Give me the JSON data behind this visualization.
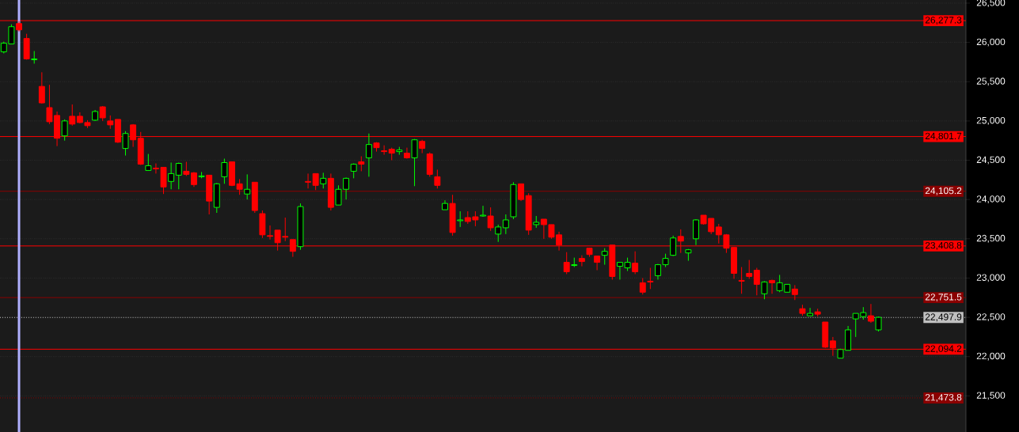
{
  "chart_data": {
    "type": "candlestick",
    "categories": [
      null,
      null,
      null,
      null,
      null,
      null,
      null,
      null,
      null,
      null,
      null,
      null,
      null,
      null,
      null,
      null,
      null,
      null,
      null,
      null,
      null,
      null,
      null,
      null,
      null,
      null,
      null,
      null,
      null,
      null,
      null,
      null,
      null,
      null,
      null,
      null,
      null,
      null,
      null,
      null,
      null,
      null,
      null,
      null,
      null,
      null,
      null,
      null,
      null,
      null,
      null,
      null,
      null,
      null,
      null,
      null,
      null,
      null,
      null,
      null,
      null,
      null,
      null,
      null,
      null,
      null,
      null,
      null,
      null,
      null,
      null,
      null,
      null,
      null,
      null,
      null,
      null,
      null,
      null,
      null,
      null,
      null,
      null,
      null,
      null,
      null,
      null,
      null,
      null,
      null,
      null,
      null,
      null,
      null,
      null,
      null,
      null,
      null,
      null,
      null,
      null,
      null,
      null,
      null,
      null,
      null,
      null,
      null,
      null,
      null,
      null,
      null,
      null,
      null,
      null,
      null,
      null,
      null,
      null,
      null,
      null,
      null,
      null,
      null,
      null,
      null,
      null
    ],
    "ohlc": [
      [
        25880,
        26010,
        25860,
        25990
      ],
      [
        25980,
        26230,
        25980,
        26200
      ],
      [
        26240,
        26270,
        26140,
        26160
      ],
      [
        26050,
        26110,
        25780,
        25790
      ],
      [
        25780,
        25890,
        25730,
        25790
      ],
      [
        25440,
        25620,
        25220,
        25230
      ],
      [
        25170,
        25460,
        24960,
        24990
      ],
      [
        25070,
        25120,
        24680,
        24780
      ],
      [
        24810,
        25020,
        24750,
        25000
      ],
      [
        25060,
        25210,
        24940,
        24960
      ],
      [
        25060,
        25110,
        24970,
        24980
      ],
      [
        24980,
        25010,
        24910,
        24940
      ],
      [
        25010,
        25140,
        25000,
        25120
      ],
      [
        25180,
        25190,
        25000,
        25040
      ],
      [
        25000,
        25070,
        24900,
        24950
      ],
      [
        25020,
        25020,
        24720,
        24730
      ],
      [
        24650,
        24870,
        24560,
        24840
      ],
      [
        24950,
        24960,
        24670,
        24760
      ],
      [
        24780,
        24860,
        24440,
        24450
      ],
      [
        24370,
        24580,
        24370,
        24430
      ],
      [
        24400,
        24460,
        24330,
        24390
      ],
      [
        24410,
        24410,
        24070,
        24160
      ],
      [
        24230,
        24470,
        24130,
        24330
      ],
      [
        24310,
        24470,
        24130,
        24460
      ],
      [
        24360,
        24480,
        24300,
        24320
      ],
      [
        24340,
        24350,
        24160,
        24190
      ],
      [
        24290,
        24350,
        24270,
        24300
      ],
      [
        24310,
        24310,
        23810,
        23980
      ],
      [
        23900,
        24210,
        23830,
        24200
      ],
      [
        24290,
        24520,
        24200,
        24470
      ],
      [
        24480,
        24480,
        24170,
        24180
      ],
      [
        24200,
        24260,
        24060,
        24130
      ],
      [
        24070,
        24320,
        24000,
        24130
      ],
      [
        24220,
        24220,
        23830,
        23860
      ],
      [
        23820,
        23860,
        23510,
        23550
      ],
      [
        23540,
        23670,
        23490,
        23530
      ],
      [
        23610,
        23610,
        23350,
        23450
      ],
      [
        23530,
        23770,
        23470,
        23520
      ],
      [
        23490,
        23490,
        23270,
        23340
      ],
      [
        23400,
        23950,
        23360,
        23910
      ],
      [
        24230,
        24330,
        24140,
        24220
      ],
      [
        24330,
        24330,
        24120,
        24180
      ],
      [
        24200,
        24340,
        24140,
        24270
      ],
      [
        24270,
        24330,
        23860,
        23900
      ],
      [
        23930,
        24180,
        23930,
        24130
      ],
      [
        24130,
        24280,
        24000,
        24270
      ],
      [
        24360,
        24460,
        24270,
        24450
      ],
      [
        24480,
        24550,
        24360,
        24450
      ],
      [
        24530,
        24840,
        24290,
        24700
      ],
      [
        24720,
        24730,
        24610,
        24660
      ],
      [
        24620,
        24690,
        24570,
        24610
      ],
      [
        24640,
        24660,
        24500,
        24590
      ],
      [
        24610,
        24670,
        24570,
        24630
      ],
      [
        24590,
        24660,
        24520,
        24530
      ],
      [
        24530,
        24770,
        24170,
        24760
      ],
      [
        24740,
        24760,
        24590,
        24650
      ],
      [
        24580,
        24600,
        24290,
        24320
      ],
      [
        24290,
        24380,
        24140,
        24180
      ],
      [
        23870,
        23990,
        23870,
        23950
      ],
      [
        23950,
        24060,
        23540,
        23580
      ],
      [
        23730,
        23850,
        23650,
        23740
      ],
      [
        23770,
        23850,
        23690,
        23720
      ],
      [
        23780,
        23850,
        23660,
        23740
      ],
      [
        23790,
        23920,
        23780,
        23800
      ],
      [
        23790,
        23900,
        23600,
        23640
      ],
      [
        23560,
        23680,
        23460,
        23650
      ],
      [
        23640,
        23810,
        23560,
        23740
      ],
      [
        23780,
        24220,
        23750,
        24190
      ],
      [
        24200,
        24200,
        23980,
        24000
      ],
      [
        24050,
        24080,
        23550,
        23610
      ],
      [
        23680,
        23790,
        23640,
        23710
      ],
      [
        23750,
        23750,
        23500,
        23680
      ],
      [
        23680,
        23680,
        23500,
        23520
      ],
      [
        23550,
        23590,
        23350,
        23420
      ],
      [
        23200,
        23330,
        23050,
        23080
      ],
      [
        23160,
        23260,
        23140,
        23170
      ],
      [
        23250,
        23290,
        23150,
        23210
      ],
      [
        23380,
        23380,
        23270,
        23300
      ],
      [
        23280,
        23280,
        23100,
        23200
      ],
      [
        23290,
        23380,
        23170,
        23340
      ],
      [
        23420,
        23420,
        22980,
        23020
      ],
      [
        23150,
        23200,
        22980,
        23200
      ],
      [
        23130,
        23260,
        23090,
        23200
      ],
      [
        23190,
        23340,
        23050,
        23080
      ],
      [
        22940,
        23000,
        22790,
        22820
      ],
      [
        22960,
        23130,
        22860,
        22950
      ],
      [
        23030,
        23180,
        22980,
        23170
      ],
      [
        23170,
        23310,
        23140,
        23250
      ],
      [
        23290,
        23540,
        23280,
        23510
      ],
      [
        23530,
        23620,
        23320,
        23470
      ],
      [
        23320,
        23370,
        23220,
        23360
      ],
      [
        23500,
        23750,
        23420,
        23740
      ],
      [
        23800,
        23800,
        23680,
        23690
      ],
      [
        23760,
        23760,
        23560,
        23590
      ],
      [
        23650,
        23690,
        23440,
        23550
      ],
      [
        23550,
        23560,
        23320,
        23380
      ],
      [
        23390,
        23390,
        22990,
        23060
      ],
      [
        22970,
        23140,
        22800,
        22960
      ],
      [
        23060,
        23230,
        22990,
        23020
      ],
      [
        23100,
        23130,
        22780,
        22920
      ],
      [
        22800,
        22960,
        22730,
        22950
      ],
      [
        22970,
        22980,
        22800,
        22940
      ],
      [
        22840,
        23040,
        22820,
        22940
      ],
      [
        22820,
        22920,
        22820,
        22920
      ],
      [
        22860,
        22910,
        22720,
        22790
      ],
      [
        22610,
        22660,
        22520,
        22550
      ],
      [
        22520,
        22620,
        22520,
        22550
      ],
      [
        22570,
        22610,
        22510,
        22540
      ],
      [
        22440,
        22440,
        22110,
        22120
      ],
      [
        22200,
        22250,
        22010,
        22110
      ],
      [
        21980,
        22100,
        21980,
        22090
      ],
      [
        22080,
        22390,
        22080,
        22340
      ],
      [
        22480,
        22550,
        22250,
        22550
      ],
      [
        22510,
        22630,
        22470,
        22560
      ],
      [
        22520,
        22670,
        22430,
        22450
      ],
      [
        22340,
        22510,
        22320,
        22500
      ],
      null,
      null,
      null,
      null,
      null,
      null,
      null,
      null,
      null,
      null,
      null
    ],
    "colors": [
      "#00ff00",
      "#00ff00",
      "#ff0000",
      "#ff0000",
      "#00ff00",
      "#ff0000",
      "#ff0000",
      "#ff0000",
      "#00ff00",
      "#ff0000",
      "#ff0000",
      "#ff0000",
      "#00ff00",
      "#ff0000",
      "#ff0000",
      "#ff0000",
      "#00ff00",
      "#ff0000",
      "#ff0000",
      "#00ff00",
      "#ff0000",
      "#ff0000",
      "#00ff00",
      "#00ff00",
      "#ff0000",
      "#ff0000",
      "#00ff00",
      "#ff0000",
      "#00ff00",
      "#00ff00",
      "#ff0000",
      "#ff0000",
      "#00ff00",
      "#ff0000",
      "#ff0000",
      "#ff0000",
      "#ff0000",
      "#ff0000",
      "#ff0000",
      "#00ff00",
      "#ff0000",
      "#ff0000",
      "#00ff00",
      "#ff0000",
      "#00ff00",
      "#00ff00",
      "#00ff00",
      "#ff0000",
      "#00ff00",
      "#ff0000",
      "#ff0000",
      "#ff0000",
      "#00ff00",
      "#ff0000",
      "#00ff00",
      "#ff0000",
      "#ff0000",
      "#ff0000",
      "#00ff00",
      "#ff0000",
      "#00ff00",
      "#ff0000",
      "#ff0000",
      "#00ff00",
      "#ff0000",
      "#00ff00",
      "#00ff00",
      "#00ff00",
      "#ff0000",
      "#ff0000",
      "#00ff00",
      "#ff0000",
      "#ff0000",
      "#ff0000",
      "#ff0000",
      "#00ff00",
      "#ff0000",
      "#ff0000",
      "#ff0000",
      "#00ff00",
      "#ff0000",
      "#00ff00",
      "#00ff00",
      "#ff0000",
      "#ff0000",
      "#ff0000",
      "#00ff00",
      "#00ff00",
      "#00ff00",
      "#ff0000",
      "#00ff00",
      "#00ff00",
      "#ff0000",
      "#ff0000",
      "#ff0000",
      "#ff0000",
      "#ff0000",
      "#ff0000",
      "#ff0000",
      "#ff0000",
      "#00ff00",
      "#ff0000",
      "#00ff00",
      "#00ff00",
      "#ff0000",
      "#ff0000",
      "#00ff00",
      "#ff0000",
      "#ff0000",
      "#ff0000",
      "#00ff00",
      "#00ff00",
      "#00ff00",
      "#00ff00",
      "#ff0000",
      "#00ff00",
      null,
      null,
      null,
      null,
      null,
      null,
      null,
      null,
      null,
      null,
      null
    ],
    "ylim": [
      21040,
      26540
    ],
    "yticks": [
      {
        "value": 21500,
        "label": "21,500"
      },
      {
        "value": 22000,
        "label": "22,000"
      },
      {
        "value": 22500,
        "label": "22,500"
      },
      {
        "value": 23000,
        "label": "23,000"
      },
      {
        "value": 23500,
        "label": "23,500"
      },
      {
        "value": 24000,
        "label": "24,000"
      },
      {
        "value": 24500,
        "label": "24,500"
      },
      {
        "value": 25000,
        "label": "25,000"
      },
      {
        "value": 25500,
        "label": "25,500"
      },
      {
        "value": 26000,
        "label": "26,000"
      },
      {
        "value": 26500,
        "label": "26,500"
      }
    ],
    "grid": "y",
    "tick_labels": "y",
    "ref_lines": [
      {
        "axis": "y",
        "value": 26277.3,
        "label": "26,277.3",
        "color": "#ff0000"
      },
      {
        "axis": "y",
        "value": 24801.7,
        "label": "24,801.7",
        "color": "#ff0000"
      },
      {
        "axis": "y",
        "value": 24105.2,
        "label": "24,105.2",
        "color": "#8b0000"
      },
      {
        "axis": "y",
        "value": 23408.8,
        "label": "23,408.8",
        "color": "#ff0000"
      },
      {
        "axis": "y",
        "value": 22751.5,
        "label": "22,751.5",
        "color": "#8b0000"
      },
      {
        "axis": "y",
        "value": 22497.9,
        "label": "22,497.9",
        "color": "#c0c0c0",
        "line_style": "dotted"
      },
      {
        "axis": "y",
        "value": 22094.2,
        "label": "22,094.2",
        "color": "#ff0000"
      },
      {
        "axis": "y",
        "value": 21473.8,
        "label": "21,473.8",
        "color": "#8b0000",
        "line_style": "dotted"
      }
    ]
  }
}
